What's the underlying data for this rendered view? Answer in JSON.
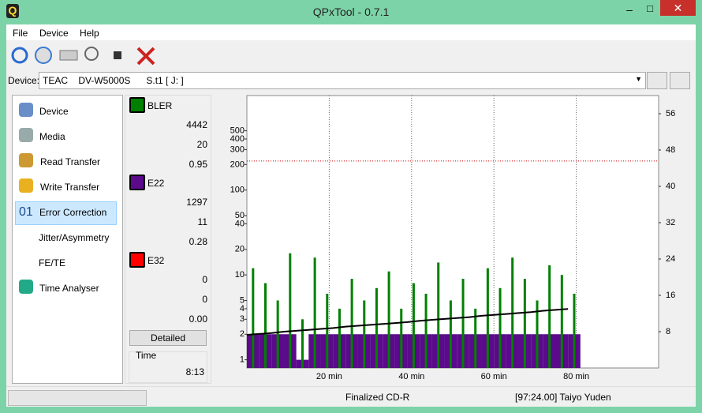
{
  "window": {
    "title": "QPxTool - 0.7.1"
  },
  "menu": [
    "File",
    "Device",
    "Help"
  ],
  "device": {
    "label": "Device:",
    "value": "TEAC    DV-W5000S      S.t1 [ J: ]"
  },
  "nav": [
    "Device",
    "Media",
    "Read Transfer",
    "Write Transfer",
    "Error Correction",
    "Jitter/Asymmetry",
    "FE/TE",
    "Time Analyser"
  ],
  "nav_badge": "01",
  "stats": [
    {
      "values": [
        "4442",
        "20",
        "0.95"
      ]
    },
    {
      "values": [
        "1297",
        "11",
        "0.28"
      ]
    },
    {
      "values": [
        "0",
        "0",
        "0.00"
      ]
    }
  ],
  "detailed_button": "Detailed",
  "time": {
    "label": "Time",
    "value": "8:13"
  },
  "status": [
    "Finalized CD-R",
    "[97:24.00] Taiyo Yuden"
  ],
  "chart_data": {
    "type": "bar",
    "x": [
      0,
      3,
      6,
      9,
      12,
      15,
      18,
      21,
      24,
      27,
      30,
      33,
      36,
      39,
      42,
      45,
      48,
      51,
      54,
      57,
      60,
      63,
      66,
      69,
      72,
      75,
      78
    ],
    "series": [
      {
        "name": "BLER",
        "color": "#008000",
        "values": [
          12,
          8,
          5,
          18,
          3,
          16,
          6,
          4,
          9,
          5,
          7,
          11,
          4,
          8,
          6,
          14,
          5,
          9,
          4,
          12,
          7,
          16,
          9,
          5,
          13,
          10,
          6
        ]
      },
      {
        "name": "E22",
        "color": "#5a0a8a",
        "values": [
          2,
          2,
          2,
          2,
          1,
          2,
          2,
          2,
          2,
          2,
          2,
          2,
          2,
          2,
          2,
          2,
          2,
          2,
          2,
          2,
          2,
          2,
          2,
          2,
          2,
          2,
          2
        ]
      },
      {
        "name": "E32",
        "color": "#ff0000",
        "values": [
          0,
          0,
          0,
          0,
          0,
          0,
          0,
          0,
          0,
          0,
          0,
          0,
          0,
          0,
          0,
          0,
          0,
          0,
          0,
          0,
          0,
          0,
          0,
          0,
          0,
          0,
          0
        ]
      },
      {
        "axis": "y2",
        "color": "#000000",
        "values": [
          7.3,
          7.5,
          7.7,
          8.0,
          8.2,
          8.4,
          8.6,
          8.8,
          9.1,
          9.3,
          9.5,
          9.7,
          9.9,
          10.1,
          10.4,
          10.6,
          10.8,
          11.0,
          11.2,
          11.5,
          11.7,
          11.9,
          12.1,
          12.3,
          12.6,
          12.8,
          13.0
        ]
      }
    ],
    "xlim": [
      0,
      100
    ],
    "xticks": [
      {
        "value": 20,
        "label": "20 min"
      },
      {
        "value": 40,
        "label": "40 min"
      },
      {
        "value": 60,
        "label": "60 min"
      },
      {
        "value": 80,
        "label": "80 min"
      }
    ],
    "ylim": [
      0.8,
      1300
    ],
    "log": true,
    "yticks": [
      1,
      2,
      3,
      4,
      5,
      10,
      20,
      40,
      50,
      100,
      200,
      300,
      400,
      500
    ],
    "y2lim": [
      0,
      60
    ],
    "y2ticks": [
      8,
      16,
      24,
      32,
      40,
      48,
      56
    ],
    "threshold": 220,
    "grid": true
  }
}
